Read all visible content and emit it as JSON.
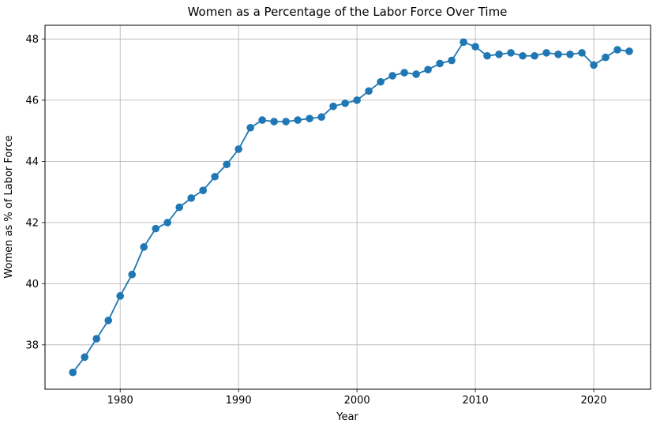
{
  "chart_data": {
    "type": "line",
    "title": "Women as a Percentage of the Labor Force Over Time",
    "xlabel": "Year",
    "ylabel": "Women as % of Labor Force",
    "x": [
      1976,
      1977,
      1978,
      1979,
      1980,
      1981,
      1982,
      1983,
      1984,
      1985,
      1986,
      1987,
      1988,
      1989,
      1990,
      1991,
      1992,
      1993,
      1994,
      1995,
      1996,
      1997,
      1998,
      1999,
      2000,
      2001,
      2002,
      2003,
      2004,
      2005,
      2006,
      2007,
      2008,
      2009,
      2010,
      2011,
      2012,
      2013,
      2014,
      2015,
      2016,
      2017,
      2018,
      2019,
      2020,
      2021,
      2022,
      2023
    ],
    "series": [
      {
        "name": "Women as % of Labor Force",
        "values": [
          37.1,
          37.6,
          38.2,
          38.8,
          39.6,
          40.3,
          41.2,
          41.8,
          42.0,
          42.5,
          42.8,
          43.05,
          43.5,
          43.9,
          44.4,
          45.1,
          45.35,
          45.3,
          45.3,
          45.35,
          45.4,
          45.45,
          45.8,
          45.9,
          46.0,
          46.3,
          46.6,
          46.8,
          46.9,
          46.85,
          47.0,
          47.2,
          47.3,
          47.9,
          47.75,
          47.45,
          47.5,
          47.55,
          47.45,
          47.45,
          47.55,
          47.5,
          47.5,
          47.55,
          47.15,
          47.4,
          47.65,
          47.6
        ]
      }
    ],
    "xticks": [
      1980,
      1990,
      2000,
      2010,
      2020
    ],
    "yticks": [
      38,
      40,
      42,
      44,
      46,
      48
    ],
    "xlim": [
      1973.65,
      2024.8
    ],
    "ylim": [
      36.55,
      48.45
    ],
    "grid": true,
    "legend": false,
    "line_color": "#1f77b4",
    "marker": "circle",
    "grid_color": "#b0b0b0",
    "spine_color": "#000000",
    "text_color": "#000000",
    "background": "#ffffff"
  }
}
